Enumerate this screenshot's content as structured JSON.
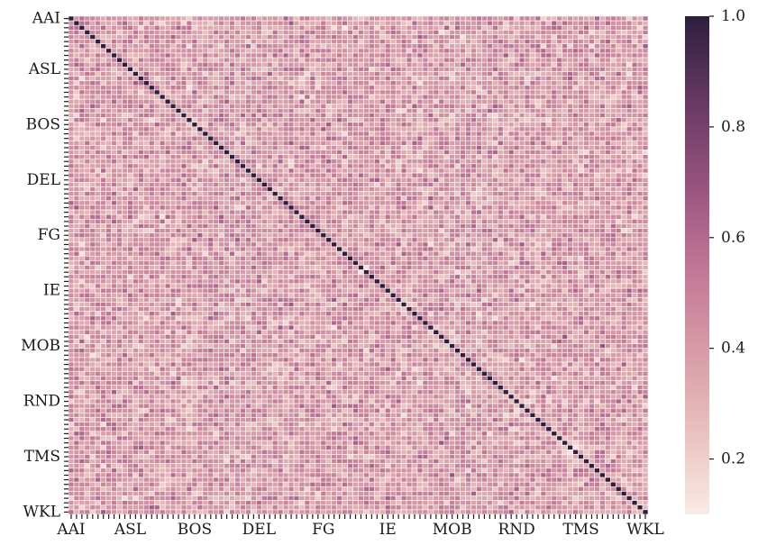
{
  "chart_data": {
    "type": "heatmap",
    "title": "",
    "xlabel": "",
    "ylabel": "",
    "size": 108,
    "labeled_ticks": [
      {
        "index": 0,
        "label": "AAI"
      },
      {
        "index": 11,
        "label": "ASL"
      },
      {
        "index": 23,
        "label": "BOS"
      },
      {
        "index": 35,
        "label": "DEL"
      },
      {
        "index": 47,
        "label": "FG"
      },
      {
        "index": 59,
        "label": "IE"
      },
      {
        "index": 71,
        "label": "MOB"
      },
      {
        "index": 83,
        "label": "RND"
      },
      {
        "index": 95,
        "label": "TMS"
      },
      {
        "index": 107,
        "label": "WKL"
      }
    ],
    "diagonal_value": 1.0,
    "off_diagonal_range": [
      0.1,
      0.7
    ],
    "color_scale": {
      "vmin": 0.1,
      "vmax": 1.0,
      "stops": [
        {
          "v": 0.1,
          "color": "#faebe5"
        },
        {
          "v": 0.25,
          "color": "#e9c0bd"
        },
        {
          "v": 0.4,
          "color": "#d79aa6"
        },
        {
          "v": 0.55,
          "color": "#c07595"
        },
        {
          "v": 0.7,
          "color": "#96527e"
        },
        {
          "v": 0.85,
          "color": "#653863"
        },
        {
          "v": 1.0,
          "color": "#2d1e3e"
        }
      ],
      "ticks": [
        "0.2",
        "0.4",
        "0.6",
        "0.8",
        "1.0"
      ]
    },
    "grid_line_color": "#ffffff",
    "colorbar_position": "right"
  }
}
